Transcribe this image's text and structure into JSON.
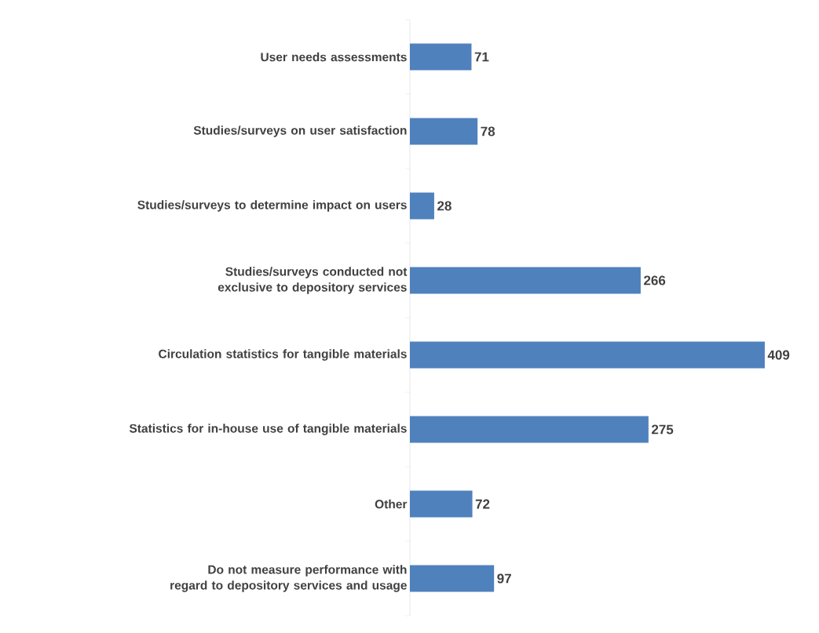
{
  "chart_data": {
    "type": "bar",
    "orientation": "horizontal",
    "categories": [
      "User needs assessments",
      "Studies/surveys on user satisfaction",
      "Studies/surveys to determine impact on users",
      "Studies/surveys conducted not exclusive to depository services",
      "Circulation statistics for tangible materials",
      "Statistics for in-house use of tangible materials",
      "Other",
      "Do not measure performance with regard to depository services and usage"
    ],
    "values": [
      71,
      78,
      28,
      266,
      409,
      275,
      72,
      97
    ],
    "color": "#4f81bd",
    "data_labels": true
  }
}
